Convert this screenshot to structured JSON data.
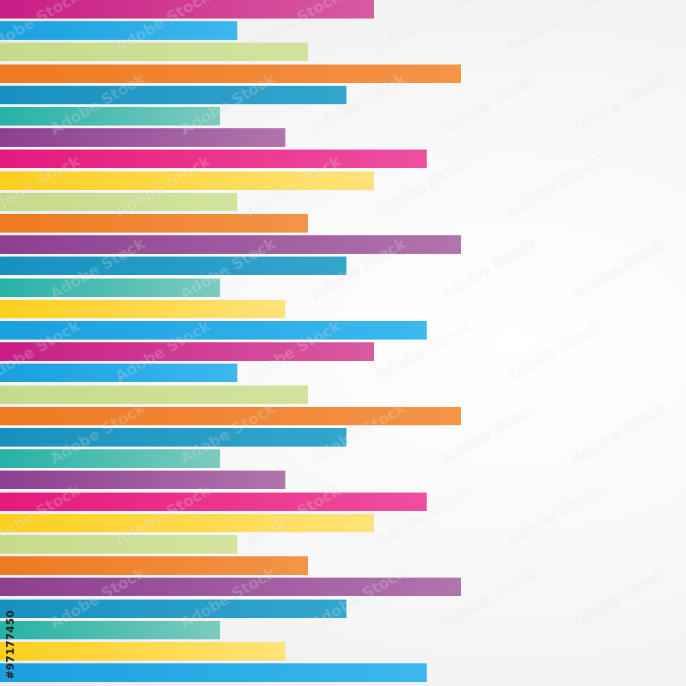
{
  "palette": {
    "magenta": [
      "#c81d84",
      "#d85aa3"
    ],
    "sky": [
      "#1a9fdf",
      "#3cb8ee"
    ],
    "lime": [
      "#c5db8c",
      "#d3e39e"
    ],
    "orange": [
      "#ee7a22",
      "#f39447"
    ],
    "steel": [
      "#1890bf",
      "#33a6cc"
    ],
    "teal": [
      "#25b2a5",
      "#7ccbbf"
    ],
    "violet": [
      "#8c3f8f",
      "#b174ae"
    ],
    "pink": [
      "#e5197c",
      "#ef4f9f"
    ],
    "yellow": [
      "#fccf1e",
      "#ffe37a"
    ]
  },
  "stripes": [
    {
      "color": "magenta",
      "length": 0.545
    },
    {
      "color": "sky",
      "length": 0.346
    },
    {
      "color": "lime",
      "length": 0.449
    },
    {
      "color": "orange",
      "length": 0.672
    },
    {
      "color": "steel",
      "length": 0.505
    },
    {
      "color": "teal",
      "length": 0.321
    },
    {
      "color": "violet",
      "length": 0.416
    },
    {
      "color": "pink",
      "length": 0.622
    },
    {
      "color": "yellow",
      "length": 0.545
    },
    {
      "color": "lime",
      "length": 0.346
    },
    {
      "color": "orange",
      "length": 0.449
    },
    {
      "color": "violet",
      "length": 0.672
    },
    {
      "color": "steel",
      "length": 0.505
    },
    {
      "color": "teal",
      "length": 0.321
    },
    {
      "color": "yellow",
      "length": 0.416
    },
    {
      "color": "sky",
      "length": 0.622
    },
    {
      "color": "magenta",
      "length": 0.545
    },
    {
      "color": "sky",
      "length": 0.346
    },
    {
      "color": "lime",
      "length": 0.449
    },
    {
      "color": "orange",
      "length": 0.672
    },
    {
      "color": "steel",
      "length": 0.505
    },
    {
      "color": "teal",
      "length": 0.321
    },
    {
      "color": "violet",
      "length": 0.416
    },
    {
      "color": "pink",
      "length": 0.622
    },
    {
      "color": "yellow",
      "length": 0.545
    },
    {
      "color": "lime",
      "length": 0.346
    },
    {
      "color": "orange",
      "length": 0.449
    },
    {
      "color": "violet",
      "length": 0.672
    },
    {
      "color": "steel",
      "length": 0.505
    },
    {
      "color": "teal",
      "length": 0.321
    },
    {
      "color": "yellow",
      "length": 0.416
    },
    {
      "color": "sky",
      "length": 0.622
    }
  ],
  "watermark": {
    "text": "Adobe Stock"
  },
  "side_id": "#97177450"
}
